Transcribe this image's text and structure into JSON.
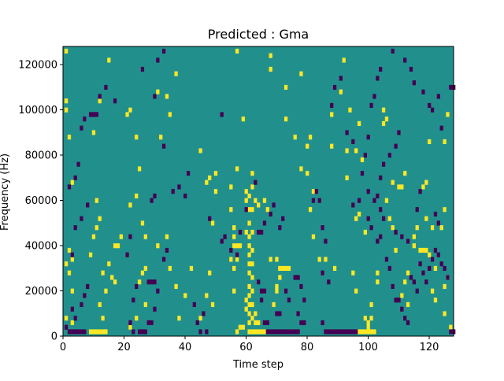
{
  "chart_data": {
    "type": "heatmap",
    "title": "Predicted : Gma",
    "xlabel": "Time step",
    "ylabel": "Frequency (Hz)",
    "xlim": [
      0,
      128
    ],
    "ylim": [
      0,
      128000
    ],
    "x_ticks": [
      "0",
      "20",
      "40",
      "60",
      "80",
      "100",
      "120"
    ],
    "y_ticks": [
      "0",
      "20000",
      "40000",
      "60000",
      "80000",
      "100000",
      "120000"
    ],
    "colors": {
      "background": "#21908d",
      "high": "#fde725",
      "low": "#440154"
    },
    "grid": false,
    "high_cells": [
      [
        1,
        126000
      ],
      [
        1,
        104000
      ],
      [
        1,
        100000
      ],
      [
        2,
        88000
      ],
      [
        3,
        68000
      ],
      [
        2,
        38000
      ],
      [
        3,
        34000
      ],
      [
        1,
        32000
      ],
      [
        2,
        28000
      ],
      [
        3,
        20000
      ],
      [
        1,
        8000
      ],
      [
        3,
        6000
      ],
      [
        15,
        122000
      ],
      [
        12,
        104000
      ],
      [
        10,
        90000
      ],
      [
        11,
        60000
      ],
      [
        12,
        52000
      ],
      [
        11,
        48000
      ],
      [
        10,
        44000
      ],
      [
        9,
        36000
      ],
      [
        13,
        28000
      ],
      [
        16,
        26000
      ],
      [
        17,
        24000
      ],
      [
        18,
        40000
      ],
      [
        19,
        44000
      ],
      [
        17,
        40000
      ],
      [
        15,
        32000
      ],
      [
        14,
        20000
      ],
      [
        12,
        14000
      ],
      [
        13,
        8000
      ],
      [
        9,
        2000
      ],
      [
        10,
        2000
      ],
      [
        11,
        2000
      ],
      [
        12,
        2000
      ],
      [
        13,
        2000
      ],
      [
        14,
        2000
      ],
      [
        21,
        98000
      ],
      [
        22,
        100000
      ],
      [
        24,
        88000
      ],
      [
        25,
        74000
      ],
      [
        24,
        62000
      ],
      [
        22,
        58000
      ],
      [
        26,
        50000
      ],
      [
        27,
        44000
      ],
      [
        27,
        30000
      ],
      [
        26,
        28000
      ],
      [
        25,
        24000
      ],
      [
        27,
        14000
      ],
      [
        24,
        8000
      ],
      [
        22,
        4000
      ],
      [
        31,
        108000
      ],
      [
        37,
        116000
      ],
      [
        34,
        106000
      ],
      [
        35,
        98000
      ],
      [
        32,
        88000
      ],
      [
        31,
        40000
      ],
      [
        34,
        44000
      ],
      [
        35,
        30000
      ],
      [
        37,
        22000
      ],
      [
        40,
        18000
      ],
      [
        42,
        30000
      ],
      [
        38,
        8000
      ],
      [
        45,
        8000
      ],
      [
        45,
        82000
      ],
      [
        47,
        68000
      ],
      [
        48,
        70000
      ],
      [
        50,
        72000
      ],
      [
        50,
        64000
      ],
      [
        49,
        50000
      ],
      [
        48,
        28000
      ],
      [
        47,
        18000
      ],
      [
        49,
        14000
      ],
      [
        57,
        126000
      ],
      [
        57,
        74000
      ],
      [
        55,
        66000
      ],
      [
        55,
        56000
      ],
      [
        56,
        44000
      ],
      [
        57,
        40000
      ],
      [
        55,
        34000
      ],
      [
        59,
        96000
      ],
      [
        56,
        40000
      ],
      [
        57,
        2000
      ],
      [
        58,
        4000
      ],
      [
        59,
        4000
      ],
      [
        60,
        64000
      ],
      [
        60,
        60000
      ],
      [
        61,
        62000
      ],
      [
        61,
        56000
      ],
      [
        61,
        50000
      ],
      [
        61,
        44000
      ],
      [
        61,
        40000
      ],
      [
        61,
        36000
      ],
      [
        61,
        32000
      ],
      [
        61,
        28000
      ],
      [
        61,
        22000
      ],
      [
        61,
        18000
      ],
      [
        61,
        14000
      ],
      [
        61,
        10000
      ],
      [
        61,
        6000
      ],
      [
        61,
        2000
      ],
      [
        62,
        72000
      ],
      [
        62,
        66000
      ],
      [
        62,
        56000
      ],
      [
        62,
        46000
      ],
      [
        62,
        38000
      ],
      [
        62,
        32000
      ],
      [
        62,
        26000
      ],
      [
        62,
        20000
      ],
      [
        62,
        14000
      ],
      [
        62,
        8000
      ],
      [
        62,
        2000
      ],
      [
        63,
        2000
      ],
      [
        64,
        2000
      ],
      [
        65,
        2000
      ],
      [
        66,
        2000
      ],
      [
        63,
        6000
      ],
      [
        64,
        6000
      ],
      [
        63,
        10000
      ],
      [
        60,
        12000
      ],
      [
        60,
        16000
      ],
      [
        60,
        46000
      ],
      [
        58,
        40000
      ],
      [
        56,
        48000
      ],
      [
        57,
        34000
      ],
      [
        56,
        30000
      ],
      [
        56,
        20000
      ],
      [
        63,
        60000
      ],
      [
        64,
        58000
      ],
      [
        66,
        60000
      ],
      [
        67,
        56000
      ],
      [
        68,
        34000
      ],
      [
        70,
        34000
      ],
      [
        71,
        30000
      ],
      [
        72,
        30000
      ],
      [
        71,
        26000
      ],
      [
        70,
        20000
      ],
      [
        69,
        14000
      ],
      [
        70,
        22000
      ],
      [
        73,
        30000
      ],
      [
        74,
        30000
      ],
      [
        68,
        124000
      ],
      [
        68,
        118000
      ],
      [
        73,
        110000
      ],
      [
        73,
        96000
      ],
      [
        78,
        116000
      ],
      [
        81,
        88000
      ],
      [
        76,
        88000
      ],
      [
        80,
        84000
      ],
      [
        78,
        74000
      ],
      [
        80,
        72000
      ],
      [
        82,
        64000
      ],
      [
        81,
        56000
      ],
      [
        82,
        44000
      ],
      [
        84,
        34000
      ],
      [
        88,
        98000
      ],
      [
        88,
        84000
      ],
      [
        92,
        122000
      ],
      [
        91,
        108000
      ],
      [
        93,
        82000
      ],
      [
        93,
        70000
      ],
      [
        98,
        78000
      ],
      [
        96,
        82000
      ],
      [
        97,
        94000
      ],
      [
        94,
        100000
      ],
      [
        96,
        52000
      ],
      [
        97,
        54000
      ],
      [
        95,
        28000
      ],
      [
        96,
        20000
      ],
      [
        99,
        46000
      ],
      [
        103,
        28000
      ],
      [
        103,
        24000
      ],
      [
        101,
        14000
      ],
      [
        101,
        8000
      ],
      [
        100,
        4000
      ],
      [
        102,
        2000
      ],
      [
        101,
        2000
      ],
      [
        100,
        2000
      ],
      [
        99,
        2000
      ],
      [
        98,
        2000
      ],
      [
        97,
        2000
      ],
      [
        99,
        8000
      ],
      [
        100,
        6000
      ],
      [
        105,
        94000
      ],
      [
        106,
        96000
      ],
      [
        107,
        52000
      ],
      [
        106,
        60000
      ],
      [
        108,
        48000
      ],
      [
        109,
        38000
      ],
      [
        111,
        18000
      ],
      [
        112,
        24000
      ],
      [
        113,
        28000
      ],
      [
        113,
        14000
      ],
      [
        115,
        40000
      ],
      [
        115,
        44000
      ],
      [
        116,
        48000
      ],
      [
        117,
        38000
      ],
      [
        118,
        38000
      ],
      [
        119,
        38000
      ],
      [
        120,
        36000
      ],
      [
        118,
        66000
      ],
      [
        119,
        52000
      ],
      [
        119,
        68000
      ],
      [
        121,
        20000
      ],
      [
        122,
        30000
      ],
      [
        122,
        16000
      ],
      [
        125,
        22000
      ],
      [
        126,
        26000
      ],
      [
        125,
        10000
      ],
      [
        127,
        4000
      ],
      [
        126,
        98000
      ],
      [
        125,
        86000
      ],
      [
        125,
        56000
      ],
      [
        124,
        48000
      ],
      [
        121,
        48000
      ],
      [
        120,
        86000
      ],
      [
        112,
        72000
      ],
      [
        111,
        66000
      ],
      [
        110,
        66000
      ],
      [
        108,
        68000
      ],
      [
        105,
        100000
      ],
      [
        86,
        34000
      ],
      [
        89,
        30000
      ]
    ],
    "low_cells": [
      [
        2,
        2000
      ],
      [
        3,
        2000
      ],
      [
        4,
        2000
      ],
      [
        5,
        2000
      ],
      [
        6,
        2000
      ],
      [
        7,
        2000
      ],
      [
        1,
        4000
      ],
      [
        3,
        12000
      ],
      [
        4,
        8000
      ],
      [
        6,
        14000
      ],
      [
        7,
        18000
      ],
      [
        8,
        22000
      ],
      [
        3,
        36000
      ],
      [
        4,
        48000
      ],
      [
        6,
        52000
      ],
      [
        8,
        58000
      ],
      [
        2,
        66000
      ],
      [
        4,
        70000
      ],
      [
        5,
        76000
      ],
      [
        6,
        92000
      ],
      [
        7,
        96000
      ],
      [
        9,
        98000
      ],
      [
        10,
        98000
      ],
      [
        11,
        98000
      ],
      [
        12,
        106000
      ],
      [
        14,
        110000
      ],
      [
        17,
        104000
      ],
      [
        22,
        44000
      ],
      [
        21,
        36000
      ],
      [
        24,
        22000
      ],
      [
        23,
        16000
      ],
      [
        22,
        6000
      ],
      [
        23,
        2000
      ],
      [
        25,
        2000
      ],
      [
        26,
        2000
      ],
      [
        27,
        2000
      ],
      [
        28,
        6000
      ],
      [
        29,
        6000
      ],
      [
        30,
        12000
      ],
      [
        31,
        20000
      ],
      [
        33,
        34000
      ],
      [
        34,
        38000
      ],
      [
        28,
        24000
      ],
      [
        29,
        24000
      ],
      [
        30,
        24000
      ],
      [
        29,
        60000
      ],
      [
        30,
        62000
      ],
      [
        33,
        84000
      ],
      [
        30,
        106000
      ],
      [
        26,
        118000
      ],
      [
        31,
        122000
      ],
      [
        33,
        126000
      ],
      [
        36,
        64000
      ],
      [
        38,
        66000
      ],
      [
        40,
        62000
      ],
      [
        41,
        72000
      ],
      [
        43,
        14000
      ],
      [
        44,
        6000
      ],
      [
        45,
        2000
      ],
      [
        46,
        10000
      ],
      [
        47,
        2000
      ],
      [
        48,
        52000
      ],
      [
        52,
        98000
      ],
      [
        52,
        42000
      ],
      [
        53,
        44000
      ],
      [
        55,
        38000
      ],
      [
        57,
        36000
      ],
      [
        58,
        46000
      ],
      [
        60,
        56000
      ],
      [
        63,
        68000
      ],
      [
        64,
        46000
      ],
      [
        65,
        46000
      ],
      [
        66,
        50000
      ],
      [
        64,
        24000
      ],
      [
        65,
        20000
      ],
      [
        66,
        20000
      ],
      [
        65,
        16000
      ],
      [
        66,
        6000
      ],
      [
        67,
        6000
      ],
      [
        67,
        2000
      ],
      [
        68,
        2000
      ],
      [
        69,
        2000
      ],
      [
        70,
        2000
      ],
      [
        71,
        2000
      ],
      [
        72,
        2000
      ],
      [
        73,
        2000
      ],
      [
        74,
        2000
      ],
      [
        75,
        2000
      ],
      [
        76,
        2000
      ],
      [
        77,
        2000
      ],
      [
        68,
        54000
      ],
      [
        69,
        58000
      ],
      [
        71,
        48000
      ],
      [
        72,
        52000
      ],
      [
        70,
        10000
      ],
      [
        71,
        10000
      ],
      [
        73,
        20000
      ],
      [
        74,
        16000
      ],
      [
        76,
        26000
      ],
      [
        77,
        26000
      ],
      [
        78,
        22000
      ],
      [
        79,
        16000
      ],
      [
        77,
        10000
      ],
      [
        78,
        6000
      ],
      [
        79,
        6000
      ],
      [
        82,
        60000
      ],
      [
        83,
        64000
      ],
      [
        84,
        60000
      ],
      [
        85,
        48000
      ],
      [
        86,
        42000
      ],
      [
        85,
        28000
      ],
      [
        87,
        24000
      ],
      [
        85,
        6000
      ],
      [
        86,
        2000
      ],
      [
        87,
        2000
      ],
      [
        88,
        2000
      ],
      [
        89,
        2000
      ],
      [
        90,
        2000
      ],
      [
        91,
        2000
      ],
      [
        92,
        2000
      ],
      [
        93,
        2000
      ],
      [
        94,
        2000
      ],
      [
        95,
        2000
      ],
      [
        96,
        2000
      ],
      [
        95,
        58000
      ],
      [
        97,
        60000
      ],
      [
        100,
        52000
      ],
      [
        101,
        48000
      ],
      [
        103,
        42000
      ],
      [
        104,
        44000
      ],
      [
        106,
        34000
      ],
      [
        107,
        30000
      ],
      [
        108,
        22000
      ],
      [
        109,
        16000
      ],
      [
        110,
        16000
      ],
      [
        111,
        12000
      ],
      [
        112,
        8000
      ],
      [
        113,
        6000
      ],
      [
        114,
        26000
      ],
      [
        115,
        24000
      ],
      [
        116,
        20000
      ],
      [
        117,
        32000
      ],
      [
        118,
        28000
      ],
      [
        119,
        24000
      ],
      [
        120,
        30000
      ],
      [
        121,
        34000
      ],
      [
        122,
        38000
      ],
      [
        123,
        36000
      ],
      [
        124,
        32000
      ],
      [
        125,
        30000
      ],
      [
        126,
        26000
      ],
      [
        127,
        2000
      ],
      [
        128,
        2000
      ],
      [
        124,
        92000
      ],
      [
        123,
        106000
      ],
      [
        127,
        110000
      ],
      [
        128,
        110000
      ],
      [
        121,
        100000
      ],
      [
        120,
        102000
      ],
      [
        118,
        108000
      ],
      [
        115,
        112000
      ],
      [
        114,
        118000
      ],
      [
        112,
        122000
      ],
      [
        108,
        126000
      ],
      [
        104,
        118000
      ],
      [
        103,
        114000
      ],
      [
        102,
        106000
      ],
      [
        101,
        102000
      ],
      [
        100,
        88000
      ],
      [
        99,
        80000
      ],
      [
        98,
        72000
      ],
      [
        100,
        64000
      ],
      [
        102,
        60000
      ],
      [
        104,
        56000
      ],
      [
        105,
        52000
      ],
      [
        109,
        46000
      ],
      [
        111,
        44000
      ],
      [
        113,
        42000
      ],
      [
        117,
        64000
      ],
      [
        116,
        56000
      ],
      [
        122,
        54000
      ],
      [
        123,
        50000
      ],
      [
        110,
        90000
      ],
      [
        109,
        84000
      ],
      [
        107,
        80000
      ],
      [
        105,
        76000
      ],
      [
        104,
        70000
      ],
      [
        103,
        62000
      ],
      [
        95,
        86000
      ],
      [
        93,
        90000
      ],
      [
        91,
        114000
      ],
      [
        89,
        110000
      ],
      [
        88,
        102000
      ]
    ]
  }
}
